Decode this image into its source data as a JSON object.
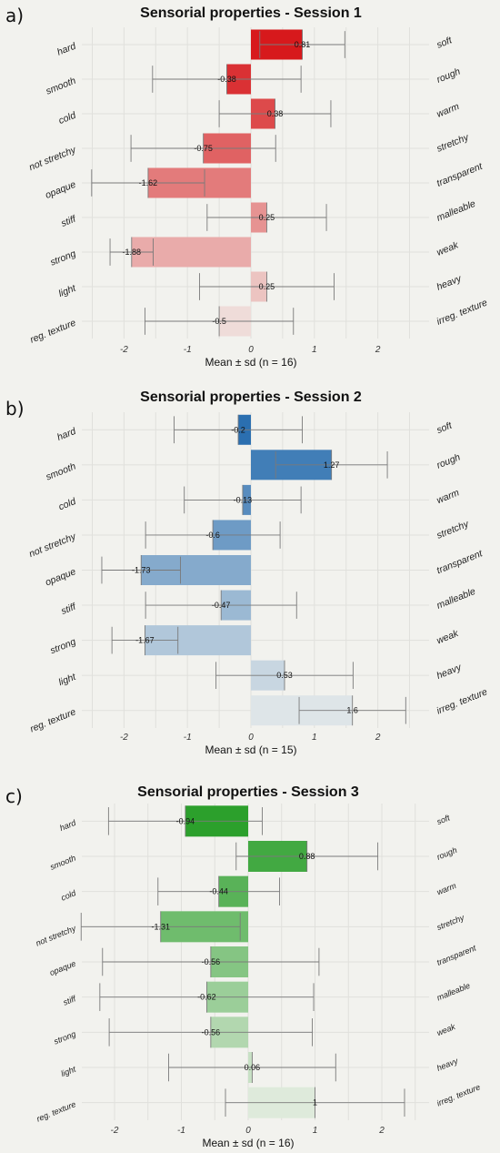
{
  "chart_data": [
    {
      "panel_label": "a)",
      "type": "bar",
      "orientation": "horizontal",
      "title": "Sensorial properties - Session 1",
      "xlabel": "Mean ± sd (n = 16)",
      "xlim": [
        -2.6,
        2.6
      ],
      "xticks": [
        -2,
        -1,
        0,
        1,
        2
      ],
      "grid": true,
      "color": "#d7191c",
      "left_labels": [
        "hard",
        "smooth",
        "cold",
        "not stretchy",
        "opaque",
        "stiff",
        "strong",
        "light",
        "reg. texture"
      ],
      "right_labels": [
        "soft",
        "rough",
        "warm",
        "stretchy",
        "transparent",
        "malleable",
        "weak",
        "heavy",
        "irreg. texture"
      ],
      "values": [
        0.81,
        -0.38,
        0.38,
        -0.75,
        -1.62,
        0.25,
        -1.88,
        0.25,
        -0.5
      ],
      "value_labels": [
        "0.81",
        "-0.38",
        "0.38",
        "-0.75",
        "-1.62",
        "0.25",
        "-1.88",
        "0.25",
        "-0.5"
      ],
      "sd": [
        0.67,
        1.17,
        0.88,
        1.14,
        0.89,
        0.94,
        0.34,
        1.06,
        1.17
      ]
    },
    {
      "panel_label": "b)",
      "type": "bar",
      "orientation": "horizontal",
      "title": "Sensorial properties - Session 2",
      "xlabel": "Mean ± sd (n = 15)",
      "xlim": [
        -2.6,
        2.6
      ],
      "xticks": [
        -2,
        -1,
        0,
        1,
        2
      ],
      "grid": true,
      "color": "#2b6fb0",
      "left_labels": [
        "hard",
        "smooth",
        "cold",
        "not stretchy",
        "opaque",
        "stiff",
        "strong",
        "light",
        "reg. texture"
      ],
      "right_labels": [
        "soft",
        "rough",
        "warm",
        "stretchy",
        "transparent",
        "malleable",
        "weak",
        "heavy",
        "irreg. texture"
      ],
      "values": [
        -0.2,
        1.27,
        -0.13,
        -0.6,
        -1.73,
        -0.47,
        -1.67,
        0.53,
        1.6
      ],
      "value_labels": [
        "-0.2",
        "1.27",
        "-0.13",
        "-0.6",
        "-1.73",
        "-0.47",
        "-1.67",
        "0.53",
        "1.6"
      ],
      "sd": [
        1.01,
        0.88,
        0.92,
        1.06,
        0.62,
        1.19,
        0.52,
        1.08,
        0.84
      ]
    },
    {
      "panel_label": "c)",
      "type": "bar",
      "orientation": "horizontal",
      "title": "Sensorial properties - Session 3",
      "xlabel": "Mean ± sd (n = 16)",
      "xlim": [
        -2.6,
        2.6
      ],
      "xticks": [
        -2,
        -1,
        0,
        1,
        2
      ],
      "grid": true,
      "color": "#2ca02c",
      "left_labels": [
        "hard",
        "smooth",
        "cold",
        "not stretchy",
        "opaque",
        "stiff",
        "strong",
        "light",
        "reg. texture"
      ],
      "right_labels": [
        "soft",
        "rough",
        "warm",
        "stretchy",
        "transparent",
        "malleable",
        "weak",
        "heavy",
        "irreg. texture"
      ],
      "values": [
        -0.94,
        0.88,
        -0.44,
        -1.31,
        -0.56,
        -0.62,
        -0.56,
        0.06,
        1
      ],
      "value_labels": [
        "-0.94",
        "0.88",
        "-0.44",
        "-1.31",
        "-0.56",
        "-0.62",
        "-0.56",
        "0.06",
        "1"
      ],
      "sd": [
        1.15,
        1.06,
        0.91,
        1.19,
        1.62,
        1.6,
        1.52,
        1.25,
        1.34
      ]
    }
  ]
}
